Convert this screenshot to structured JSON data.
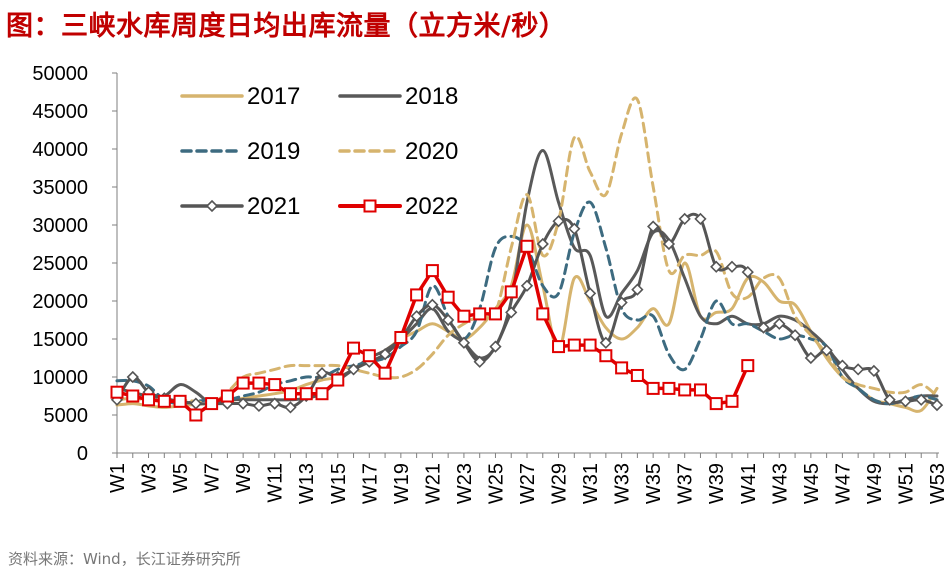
{
  "title": "图：三峡水库周度日均出库流量（立方米/秒）",
  "source": "资料来源：Wind，长江证券研究所",
  "chart_data": {
    "type": "line",
    "title": "三峡水库周度日均出库流量（立方米/秒）",
    "xlabel": "",
    "ylabel": "",
    "ylim": [
      0,
      50000
    ],
    "yticks": [
      0,
      5000,
      10000,
      15000,
      20000,
      25000,
      30000,
      35000,
      40000,
      45000,
      50000
    ],
    "ytick_labels": [
      "0",
      "5000",
      "10000",
      "15000",
      "20000",
      "25000",
      "30000",
      "35000",
      "40000",
      "45000",
      "50000"
    ],
    "categories": [
      "W1",
      "W2",
      "W3",
      "W4",
      "W5",
      "W6",
      "W7",
      "W8",
      "W9",
      "W10",
      "W11",
      "W12",
      "W13",
      "W14",
      "W15",
      "W16",
      "W17",
      "W18",
      "W19",
      "W20",
      "W21",
      "W22",
      "W23",
      "W24",
      "W25",
      "W26",
      "W27",
      "W28",
      "W29",
      "W30",
      "W31",
      "W32",
      "W33",
      "W34",
      "W35",
      "W36",
      "W37",
      "W38",
      "W39",
      "W40",
      "W41",
      "W42",
      "W43",
      "W44",
      "W45",
      "W46",
      "W47",
      "W48",
      "W49",
      "W50",
      "W51",
      "W52",
      "W53"
    ],
    "xtick_labels": [
      "W1",
      "W3",
      "W5",
      "W7",
      "W9",
      "W11",
      "W13",
      "W15",
      "W17",
      "W19",
      "W21",
      "W23",
      "W25",
      "W27",
      "W29",
      "W31",
      "W33",
      "W35",
      "W37",
      "W39",
      "W41",
      "W43",
      "W45",
      "W47",
      "W49",
      "W51",
      "W53"
    ],
    "legend": [
      "2017",
      "2018",
      "2019",
      "2020",
      "2021",
      "2022"
    ],
    "legend_position": "top-left",
    "series": [
      {
        "name": "2017",
        "style": "solid",
        "marker": "none",
        "color": "#d6b46e",
        "values": [
          6300,
          6500,
          6200,
          6000,
          6200,
          6400,
          6500,
          6800,
          7200,
          7500,
          7800,
          8200,
          9000,
          9600,
          10000,
          11000,
          12500,
          13500,
          15000,
          16000,
          17000,
          16000,
          15000,
          16500,
          19000,
          22000,
          30000,
          22000,
          13500,
          23000,
          20000,
          16500,
          15000,
          16500,
          19000,
          17000,
          25000,
          18000,
          18500,
          19000,
          23000,
          22500,
          20000,
          19500,
          16000,
          12500,
          10000,
          8500,
          7000,
          6500,
          6000,
          5600,
          8500
        ]
      },
      {
        "name": "2018",
        "style": "solid",
        "marker": "none",
        "color": "#595959",
        "values": [
          8500,
          8000,
          7500,
          7500,
          9000,
          8000,
          6500,
          7000,
          7000,
          7000,
          7000,
          7000,
          7200,
          7800,
          9500,
          11000,
          12500,
          13500,
          15000,
          17000,
          19000,
          16000,
          14500,
          12500,
          14000,
          20000,
          33000,
          39800,
          33000,
          27000,
          26000,
          18000,
          21000,
          24000,
          29000,
          28000,
          23000,
          18000,
          17000,
          18000,
          17000,
          17000,
          18000,
          17500,
          16000,
          14000,
          11000,
          8500,
          6800,
          6500,
          7000,
          7500,
          7500
        ]
      },
      {
        "name": "2019",
        "style": "dashed",
        "marker": "none",
        "color": "#3d6b80",
        "values": [
          9500,
          9500,
          8800,
          7000,
          6500,
          6800,
          7000,
          7000,
          7500,
          8000,
          9000,
          9500,
          10000,
          10000,
          11000,
          11500,
          12000,
          12500,
          14000,
          16000,
          22000,
          18000,
          15000,
          19000,
          27000,
          28500,
          27000,
          22000,
          21000,
          29000,
          33000,
          27000,
          19000,
          17500,
          18000,
          13000,
          11000,
          15000,
          20000,
          17000,
          17000,
          16000,
          15000,
          15500,
          15000,
          14000,
          10000,
          8500,
          7000,
          6500,
          7000,
          7500,
          7000
        ]
      },
      {
        "name": "2020",
        "style": "dashed",
        "marker": "none",
        "color": "#d6b46e",
        "values": [
          7000,
          7200,
          7000,
          7000,
          7000,
          6800,
          6500,
          8000,
          10000,
          10500,
          11000,
          11500,
          11500,
          11500,
          11500,
          11000,
          10500,
          10000,
          10000,
          11000,
          13000,
          15500,
          17000,
          18000,
          18500,
          27000,
          34000,
          26000,
          30500,
          41500,
          37000,
          34000,
          42000,
          46500,
          35000,
          24000,
          26000,
          26000,
          26500,
          21000,
          20500,
          23000,
          23000,
          18000,
          15500,
          13000,
          10000,
          9000,
          8500,
          8000,
          8000,
          9000,
          7500
        ]
      },
      {
        "name": "2021",
        "style": "solid",
        "marker": "diamond",
        "color": "#555555",
        "values": [
          7000,
          10000,
          8000,
          7200,
          6800,
          6500,
          6500,
          6500,
          6500,
          6200,
          6500,
          6000,
          7500,
          10500,
          10000,
          11000,
          12000,
          13000,
          15000,
          18000,
          19500,
          17500,
          14500,
          12000,
          14000,
          18500,
          22000,
          27500,
          30500,
          29500,
          21000,
          14500,
          19800,
          21500,
          29800,
          27500,
          30800,
          30800,
          24500,
          24500,
          23800,
          16500,
          17000,
          15500,
          12500,
          13500,
          11500,
          11000,
          10800,
          7000,
          6800,
          7000,
          6300
        ]
      },
      {
        "name": "2022",
        "style": "solid",
        "marker": "square",
        "color": "#e00000",
        "values": [
          8000,
          7500,
          7000,
          6800,
          6800,
          5000,
          6500,
          7500,
          9200,
          9200,
          9000,
          7800,
          7800,
          7800,
          9600,
          13800,
          12800,
          10500,
          15200,
          20800,
          24000,
          20500,
          18000,
          18300,
          18300,
          21200,
          27200,
          18300,
          14000,
          14200,
          14200,
          12800,
          11200,
          10200,
          8500,
          8500,
          8300,
          8300,
          6500,
          6800,
          11500,
          null,
          null,
          null,
          null,
          null,
          null,
          null,
          null,
          null,
          null,
          null,
          null
        ]
      }
    ]
  }
}
